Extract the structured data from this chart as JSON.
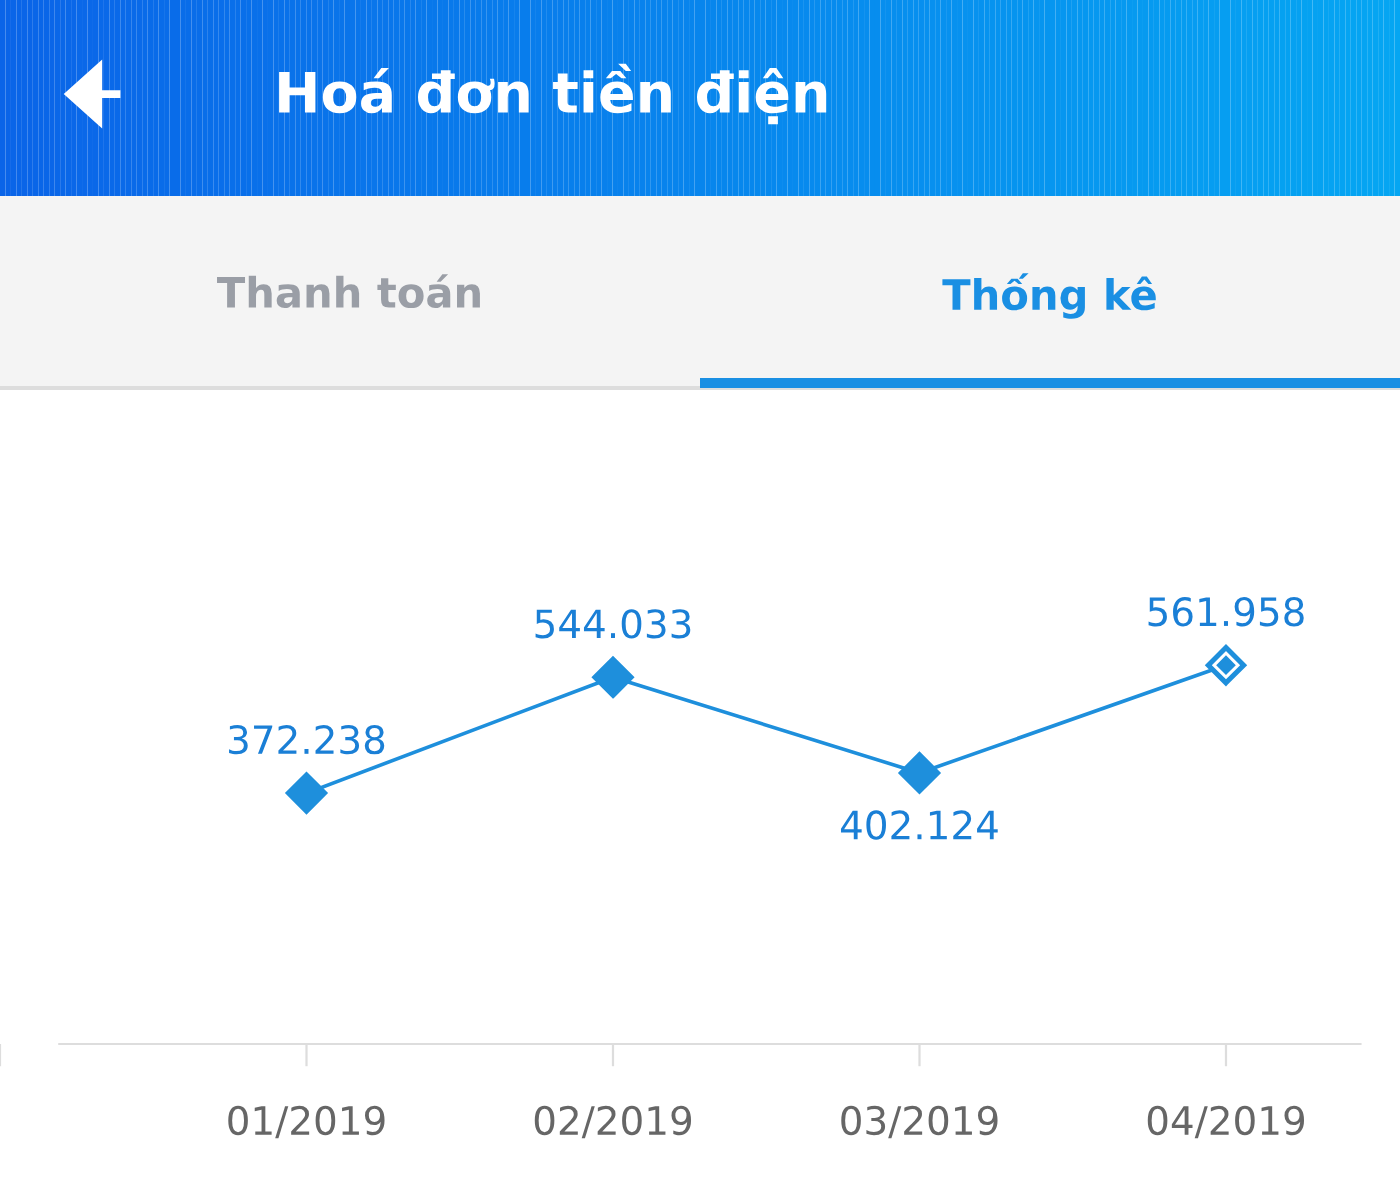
{
  "chart_data": {
    "type": "line",
    "title": "Hoá đơn tiền điện",
    "annotations": [
      "Thanh toán",
      "Thống kê"
    ],
    "categories": [
      null,
      "01/2019",
      "02/2019",
      "03/2019",
      "04/2019"
    ],
    "series": [
      {
        "color": "#1e8fdc",
        "values": [
          null,
          372.238,
          544.033,
          402.124,
          561.958
        ]
      }
    ],
    "marker": "diamond",
    "data_labels": true,
    "grid": false,
    "legend": false
  }
}
